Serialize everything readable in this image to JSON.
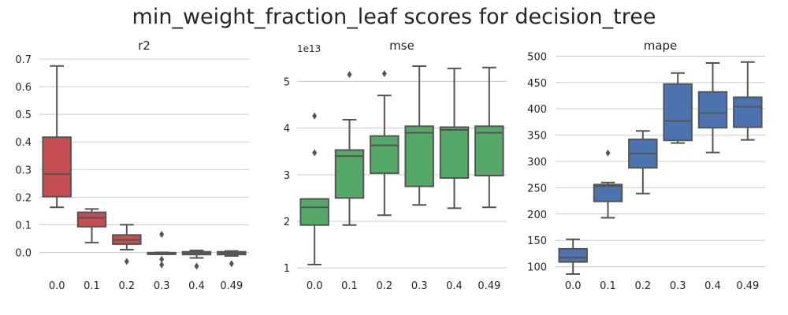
{
  "title": "min_weight_fraction_leaf scores for decision_tree",
  "chart_data": [
    {
      "type": "box",
      "title": "r2",
      "color": "#c44e52",
      "categories": [
        "0.0",
        "0.1",
        "0.2",
        "0.3",
        "0.4",
        "0.49"
      ],
      "ylim": [
        -0.09,
        0.72
      ],
      "yticks": [
        0.0,
        0.1,
        0.2,
        0.3,
        0.4,
        0.5,
        0.6,
        0.7
      ],
      "ytick_labels": [
        "0.0",
        "0.1",
        "0.2",
        "0.3",
        "0.4",
        "0.5",
        "0.6",
        "0.7"
      ],
      "offset_label": "",
      "boxes": [
        {
          "whislo": 0.163,
          "q1": 0.202,
          "med": 0.283,
          "q3": 0.417,
          "whishi": 0.675,
          "fliers": []
        },
        {
          "whislo": 0.035,
          "q1": 0.093,
          "med": 0.125,
          "q3": 0.145,
          "whishi": 0.157,
          "fliers": []
        },
        {
          "whislo": 0.01,
          "q1": 0.03,
          "med": 0.045,
          "q3": 0.063,
          "whishi": 0.1,
          "fliers": [
            -0.033
          ]
        },
        {
          "whislo": -0.007,
          "q1": -0.007,
          "med": -0.004,
          "q3": -0.001,
          "whishi": 0.0,
          "fliers": [
            0.065,
            -0.025,
            -0.045
          ]
        },
        {
          "whislo": -0.02,
          "q1": -0.008,
          "med": -0.003,
          "q3": 0.002,
          "whishi": 0.007,
          "fliers": [
            -0.05
          ]
        },
        {
          "whislo": -0.013,
          "q1": -0.008,
          "med": -0.003,
          "q3": 0.002,
          "whishi": 0.005,
          "fliers": [
            -0.041
          ]
        }
      ]
    },
    {
      "type": "box",
      "title": "mse",
      "color": "#55a868",
      "categories": [
        "0.0",
        "0.1",
        "0.2",
        "0.3",
        "0.4",
        "0.49"
      ],
      "ylim": [
        0.8,
        5.6
      ],
      "yticks": [
        1,
        2,
        3,
        4,
        5
      ],
      "ytick_labels": [
        "1",
        "2",
        "3",
        "4",
        "5"
      ],
      "offset_label": "1e13",
      "boxes": [
        {
          "whislo": 1.07,
          "q1": 1.92,
          "med": 2.3,
          "q3": 2.48,
          "whishi": 2.48,
          "fliers": [
            4.26,
            3.47
          ]
        },
        {
          "whislo": 1.92,
          "q1": 2.5,
          "med": 3.4,
          "q3": 3.53,
          "whishi": 4.18,
          "fliers": [
            5.15
          ]
        },
        {
          "whislo": 2.13,
          "q1": 3.03,
          "med": 3.63,
          "q3": 3.83,
          "whishi": 4.7,
          "fliers": [
            5.17
          ]
        },
        {
          "whislo": 2.35,
          "q1": 2.75,
          "med": 3.9,
          "q3": 4.04,
          "whishi": 5.33,
          "fliers": []
        },
        {
          "whislo": 2.28,
          "q1": 2.93,
          "med": 3.96,
          "q3": 4.02,
          "whishi": 5.28,
          "fliers": []
        },
        {
          "whislo": 2.3,
          "q1": 2.98,
          "med": 3.9,
          "q3": 4.04,
          "whishi": 5.3,
          "fliers": []
        }
      ]
    },
    {
      "type": "box",
      "title": "mape",
      "color": "#4c72b0",
      "categories": [
        "0.0",
        "0.1",
        "0.2",
        "0.3",
        "0.4",
        "0.49"
      ],
      "ylim": [
        80,
        505
      ],
      "yticks": [
        100,
        150,
        200,
        250,
        300,
        350,
        400,
        450,
        500
      ],
      "ytick_labels": [
        "100",
        "150",
        "200",
        "250",
        "300",
        "350",
        "400",
        "450",
        "500"
      ],
      "offset_label": "",
      "boxes": [
        {
          "whislo": 86,
          "q1": 109,
          "med": 117,
          "q3": 134,
          "whishi": 152,
          "fliers": []
        },
        {
          "whislo": 193,
          "q1": 224,
          "med": 253,
          "q3": 256,
          "whishi": 260,
          "fliers": [
            316
          ]
        },
        {
          "whislo": 239,
          "q1": 288,
          "med": 315,
          "q3": 342,
          "whishi": 358,
          "fliers": []
        },
        {
          "whislo": 335,
          "q1": 340,
          "med": 377,
          "q3": 447,
          "whishi": 468,
          "fliers": []
        },
        {
          "whislo": 317,
          "q1": 364,
          "med": 392,
          "q3": 432,
          "whishi": 487,
          "fliers": []
        },
        {
          "whislo": 341,
          "q1": 365,
          "med": 404,
          "q3": 422,
          "whishi": 489,
          "fliers": []
        }
      ]
    }
  ]
}
